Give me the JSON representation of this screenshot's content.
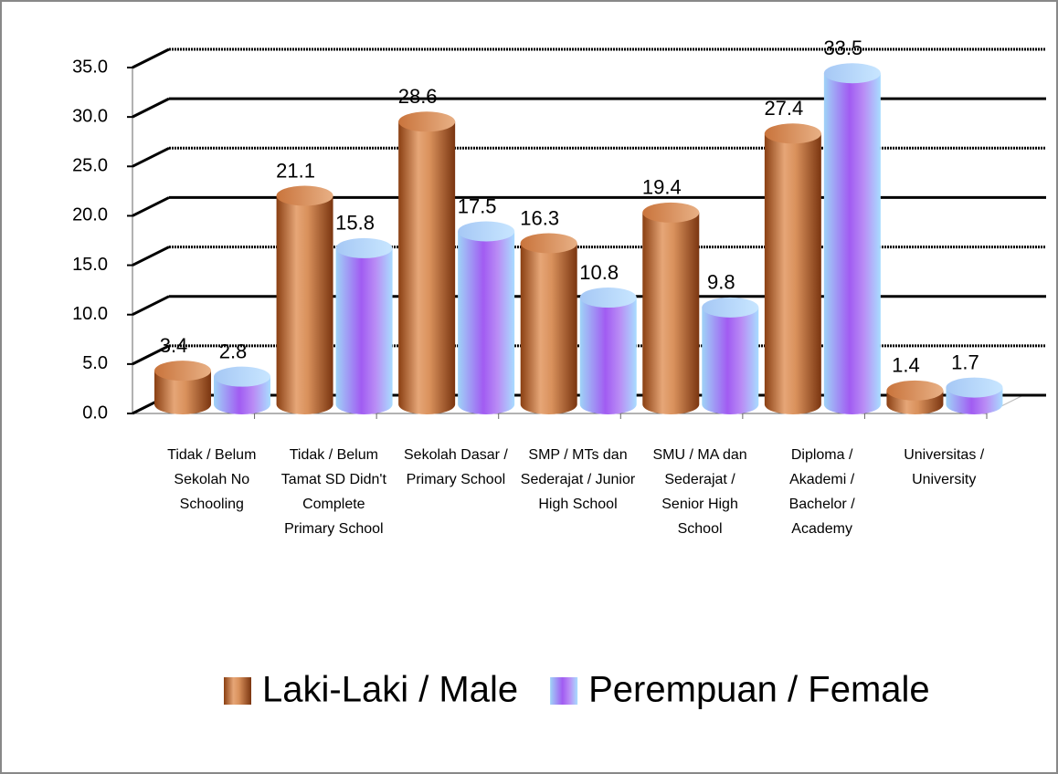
{
  "chart_data": {
    "type": "bar3d",
    "categories": [
      "Tidak / Belum Sekolah No Schooling",
      "Tidak / Belum Tamat SD Didn't Complete Primary School",
      "Sekolah Dasar / Primary School",
      "SMP / MTs dan Sederajat / Junior High School",
      "SMU / MA dan Sederajat / Senior High School",
      "Diploma / Akademi / Bachelor / Academy",
      "Universitas / University"
    ],
    "series": [
      {
        "name": "Laki-Laki / Male",
        "color": "#c8733e",
        "values": [
          3.4,
          21.1,
          28.6,
          16.3,
          19.4,
          27.4,
          1.4
        ]
      },
      {
        "name": "Perempuan / Female",
        "color": "#a77cf5",
        "values": [
          2.8,
          15.8,
          17.5,
          10.8,
          9.8,
          33.5,
          1.7
        ]
      }
    ],
    "ylim": [
      0,
      35
    ],
    "yticks": [
      {
        "value": 0,
        "label": "0.0"
      },
      {
        "value": 5,
        "label": "5.0"
      },
      {
        "value": 10,
        "label": "10.0"
      },
      {
        "value": 15,
        "label": "15.0"
      },
      {
        "value": 20,
        "label": "20.0"
      },
      {
        "value": 25,
        "label": "25.0"
      },
      {
        "value": 30,
        "label": "30.0"
      },
      {
        "value": 35,
        "label": "35.0"
      }
    ],
    "grid": true
  }
}
